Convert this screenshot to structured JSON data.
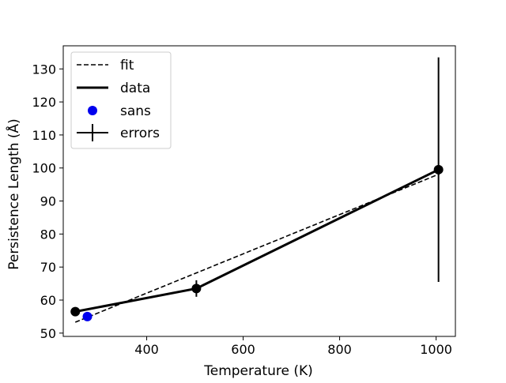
{
  "chart_data": {
    "type": "line",
    "xlabel": "Temperature (K)",
    "ylabel": "Persistence Length (Å)",
    "xlim": [
      227,
      1040
    ],
    "ylim": [
      49,
      137
    ],
    "xticks": [
      400,
      600,
      800,
      1000
    ],
    "xtick_labels": [
      "400",
      "600",
      "800",
      "1000"
    ],
    "yticks": [
      50,
      60,
      70,
      80,
      90,
      100,
      110,
      120,
      130
    ],
    "ytick_labels": [
      "50",
      "60",
      "70",
      "80",
      "90",
      "100",
      "110",
      "120",
      "130"
    ],
    "grid": false,
    "legend_position": "upper-left",
    "series": [
      {
        "name": "fit",
        "style": "dashed",
        "color": "#000000",
        "x": [
          252,
          1007
        ],
        "y": [
          53.3,
          98.2
        ]
      },
      {
        "name": "data",
        "style": "solid-markers",
        "color": "#000000",
        "x": [
          252,
          503,
          1005
        ],
        "y": [
          56.5,
          63.5,
          99.5
        ]
      },
      {
        "name": "sans",
        "style": "markers",
        "color": "#0000ee",
        "x": [
          277
        ],
        "y": [
          55.0
        ]
      },
      {
        "name": "errors",
        "style": "errorbar",
        "color": "#000000",
        "x": [
          252,
          503,
          1005
        ],
        "y": [
          56.5,
          63.5,
          99.5
        ],
        "yerr": [
          0.8,
          2.5,
          34.0
        ]
      }
    ]
  }
}
